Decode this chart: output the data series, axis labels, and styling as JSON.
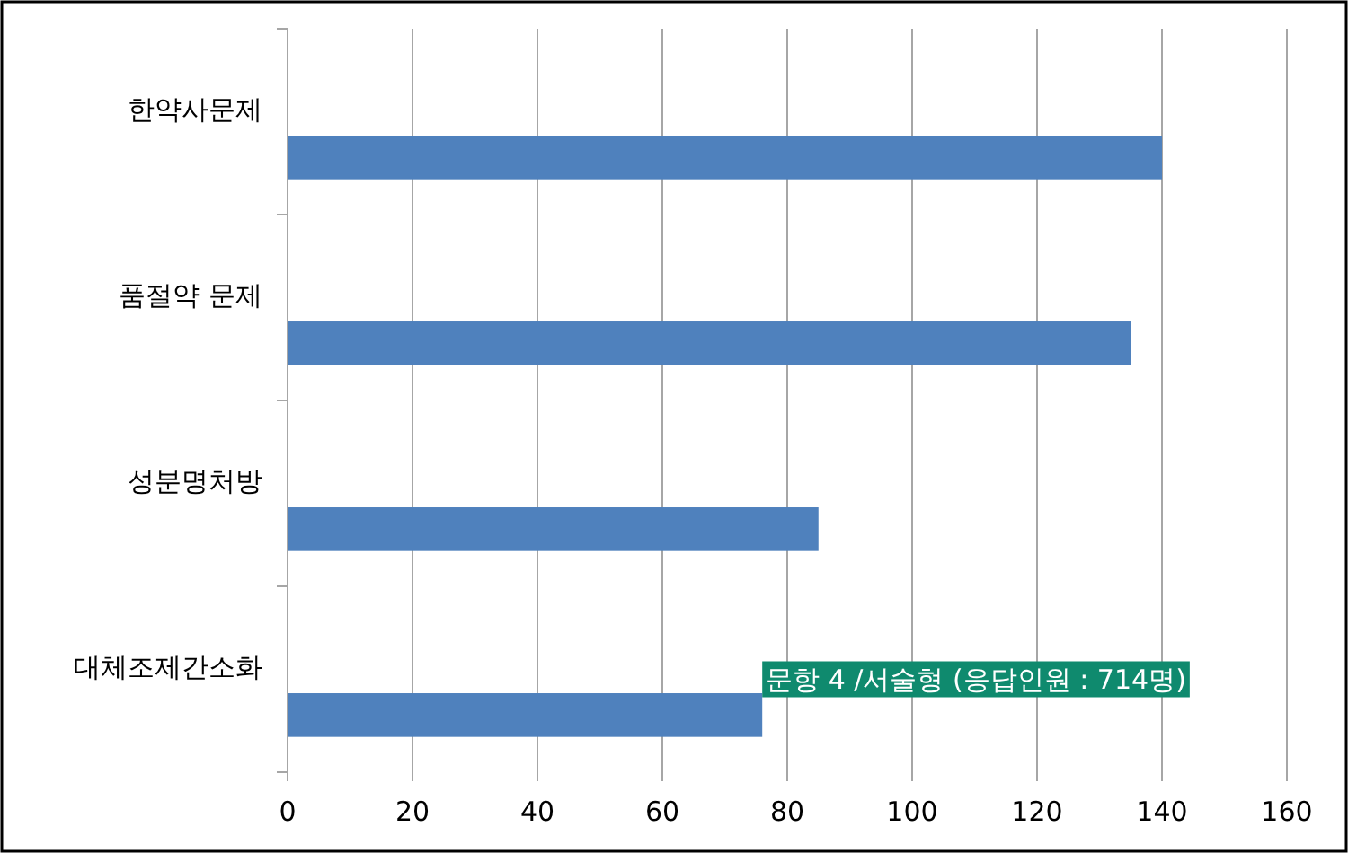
{
  "chart_data": {
    "type": "bar",
    "orientation": "horizontal",
    "categories": [
      "한약사문제",
      "품절약 문제",
      "성분명처방",
      "대체조제간소화"
    ],
    "values": [
      140,
      135,
      85,
      76
    ],
    "color": "#4f81bd",
    "xlim": [
      0,
      160
    ],
    "xticks": [
      0,
      20,
      40,
      60,
      80,
      100,
      120,
      140,
      160
    ],
    "grid": "x",
    "annotations": [
      {
        "text": "문항 4 /서술형 (응답인원 : 714명)",
        "x": 76,
        "y": "대체조제간소화"
      }
    ]
  }
}
